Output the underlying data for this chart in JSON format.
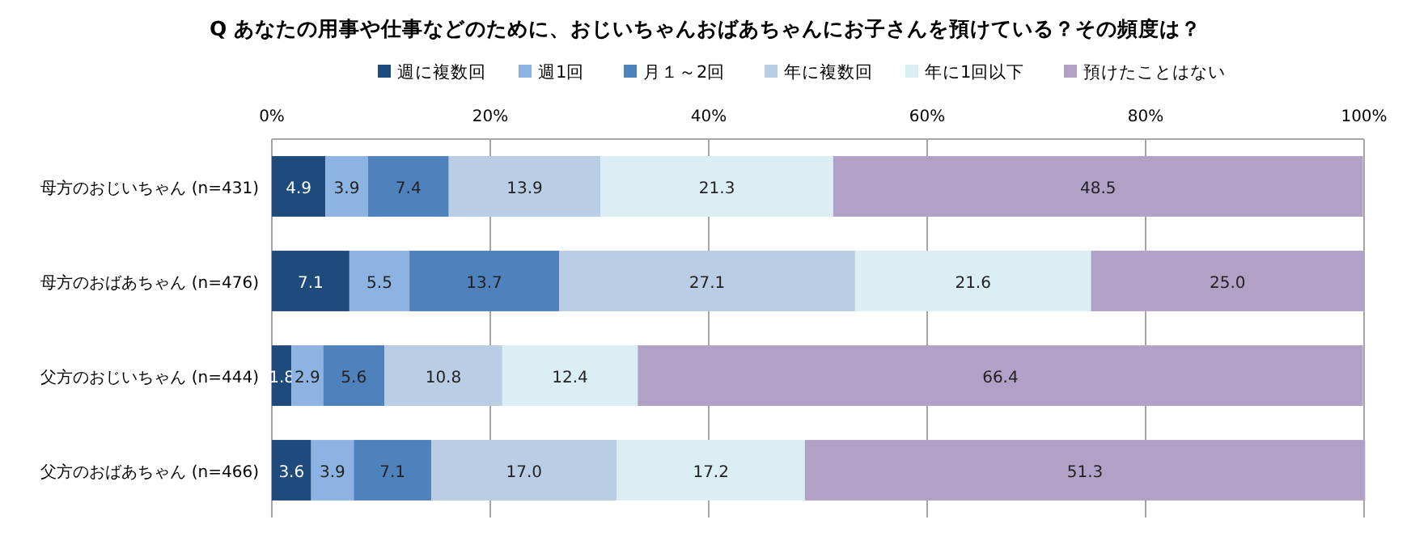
{
  "chart_data": {
    "type": "bar",
    "orientation": "horizontal",
    "stacked": true,
    "title": "Q あなたの用事や仕事などのために、おじいちゃんおばあちゃんにお子さんを預けている？その頻度は？",
    "categories": [
      "母方のおじいちゃん (n=431)",
      "母方のおばあちゃん (n=476)",
      "父方のおじいちゃん (n=444)",
      "父方のおばあちゃん (n=466)"
    ],
    "series": [
      {
        "name": "週に複数回",
        "color": "#1f4a7c",
        "values": [
          4.9,
          7.1,
          1.8,
          3.6
        ],
        "value_labels": [
          "4.9",
          "7.1",
          "1.8",
          "3.6"
        ]
      },
      {
        "name": "週1回",
        "color": "#8db3e2",
        "values": [
          3.9,
          5.5,
          2.9,
          3.9
        ],
        "value_labels": [
          "3.9",
          "5.5",
          "2.9",
          "3.9"
        ]
      },
      {
        "name": "月１～2回",
        "color": "#4f81bd",
        "values": [
          7.4,
          13.7,
          5.6,
          7.1
        ],
        "value_labels": [
          "7.4",
          "13.7",
          "5.6",
          "7.1"
        ]
      },
      {
        "name": "年に複数回",
        "color": "#b9cde5",
        "values": [
          13.9,
          27.1,
          10.8,
          17
        ],
        "value_labels": [
          "13.9",
          "27.1",
          "10.8",
          "17.0"
        ]
      },
      {
        "name": "年に1回以下",
        "color": "#dbeef4",
        "values": [
          21.3,
          21.6,
          12.4,
          17.2
        ],
        "value_labels": [
          "21.3",
          "21.6",
          "12.4",
          "17.2"
        ]
      },
      {
        "name": "預けたことはない",
        "color": "#b2a1c7",
        "values": [
          48.5,
          25,
          66.4,
          51.3
        ],
        "value_labels": [
          "48.5",
          "25.0",
          "66.4",
          "51.3"
        ]
      }
    ],
    "xlim": [
      0,
      100
    ],
    "xticks": [
      {
        "value": 0,
        "label": "0%"
      },
      {
        "value": 20,
        "label": "20%"
      },
      {
        "value": 40,
        "label": "40%"
      },
      {
        "value": 60,
        "label": "60%"
      },
      {
        "value": 80,
        "label": "80%"
      },
      {
        "value": 100,
        "label": "100%"
      }
    ],
    "grid": "x",
    "legend": "top"
  }
}
